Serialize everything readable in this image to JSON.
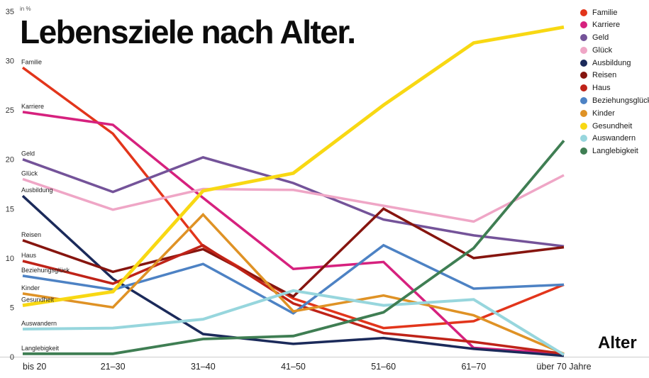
{
  "title": "Lebensziele nach Alter.",
  "y_axis_unit": "in %",
  "x_axis_title": "Alter",
  "chart_data": {
    "type": "line",
    "categories": [
      "bis 20",
      "21–30",
      "31–40",
      "41–50",
      "51–60",
      "61–70",
      "über 70 Jahre"
    ],
    "y_ticks": [
      0,
      5,
      10,
      15,
      20,
      25,
      30,
      35
    ],
    "ylim": [
      0,
      35
    ],
    "grid": false,
    "legend_position": "top-right",
    "series": [
      {
        "name": "Familie",
        "color": "#e2351b",
        "stroke_width": 3.5,
        "values": [
          29.3,
          22.6,
          11.2,
          5.9,
          2.9,
          3.6,
          7.3
        ]
      },
      {
        "name": "Karriere",
        "color": "#d6217e",
        "stroke_width": 3.5,
        "values": [
          24.8,
          23.5,
          16.1,
          8.9,
          9.6,
          0.9,
          0.3
        ]
      },
      {
        "name": "Geld",
        "color": "#745399",
        "stroke_width": 3.5,
        "values": [
          20.0,
          16.7,
          20.2,
          17.6,
          13.9,
          12.3,
          11.2
        ]
      },
      {
        "name": "Glück",
        "color": "#efa6c6",
        "stroke_width": 3.5,
        "values": [
          18.0,
          14.9,
          17.0,
          16.9,
          15.3,
          13.7,
          18.4
        ]
      },
      {
        "name": "Ausbildung",
        "color": "#1b2a5a",
        "stroke_width": 3.5,
        "values": [
          16.3,
          7.9,
          2.3,
          1.3,
          1.9,
          0.8,
          0.1
        ]
      },
      {
        "name": "Reisen",
        "color": "#86150f",
        "stroke_width": 3.5,
        "values": [
          11.8,
          8.6,
          10.9,
          6.1,
          15.0,
          10.0,
          11.1
        ]
      },
      {
        "name": "Haus",
        "color": "#bf2318",
        "stroke_width": 3.5,
        "values": [
          9.7,
          7.4,
          11.3,
          5.4,
          2.4,
          1.5,
          0.3
        ]
      },
      {
        "name": "Beziehungsglück",
        "color": "#4d82c4",
        "stroke_width": 3.5,
        "values": [
          8.2,
          6.8,
          9.4,
          4.4,
          11.3,
          6.9,
          7.3
        ]
      },
      {
        "name": "Kinder",
        "color": "#df9225",
        "stroke_width": 3.5,
        "values": [
          6.4,
          5.0,
          14.4,
          4.6,
          6.2,
          4.2,
          0.3
        ]
      },
      {
        "name": "Gesundheit",
        "color": "#f8d813",
        "stroke_width": 4.8,
        "values": [
          5.2,
          6.6,
          16.8,
          18.6,
          25.5,
          31.8,
          33.4
        ]
      },
      {
        "name": "Auswandern",
        "color": "#97d6dd",
        "stroke_width": 4.0,
        "values": [
          2.8,
          2.9,
          3.8,
          6.7,
          5.2,
          5.8,
          0.2
        ]
      },
      {
        "name": "Langlebigkeit",
        "color": "#3f7e53",
        "stroke_width": 3.8,
        "values": [
          0.3,
          0.3,
          1.8,
          2.1,
          4.5,
          11.0,
          21.9
        ]
      }
    ]
  }
}
